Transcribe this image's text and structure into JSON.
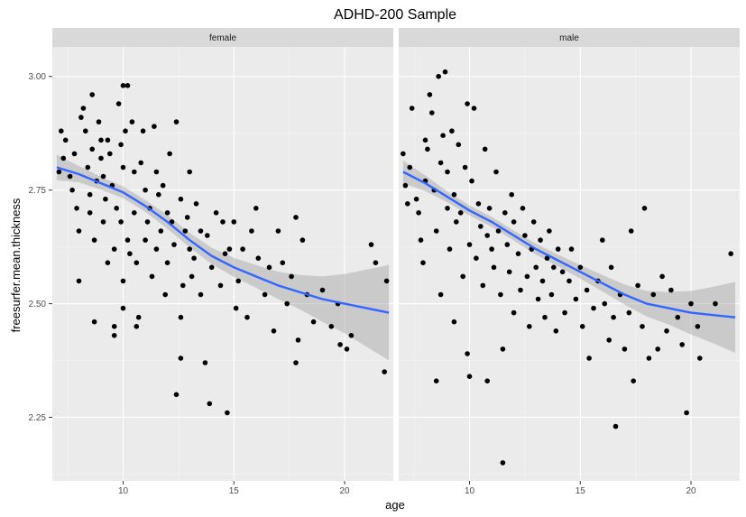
{
  "chart_data": {
    "type": "scatter",
    "title": "ADHD-200 Sample",
    "xlabel": "age",
    "ylabel": "freesurfer.mean.thickness",
    "xlim": [
      6.8,
      22.2
    ],
    "ylim": [
      2.11,
      3.065
    ],
    "x_ticks": [
      10,
      15,
      20
    ],
    "y_ticks": [
      2.25,
      2.5,
      2.75,
      3.0
    ],
    "x_tick_labels": [
      "10",
      "15",
      "20"
    ],
    "y_tick_labels": [
      "2.25",
      "2.50",
      "2.75",
      "3.00"
    ],
    "grid": true,
    "smoother": {
      "color": "#3366ff",
      "ribbon_color": "#999999"
    },
    "panels": [
      {
        "label": "female",
        "points": [
          [
            7.1,
            2.79
          ],
          [
            7.2,
            2.88
          ],
          [
            7.3,
            2.82
          ],
          [
            7.4,
            2.86
          ],
          [
            7.6,
            2.78
          ],
          [
            7.7,
            2.75
          ],
          [
            7.8,
            2.83
          ],
          [
            7.9,
            2.71
          ],
          [
            8.0,
            2.66
          ],
          [
            8.0,
            2.55
          ],
          [
            8.1,
            2.91
          ],
          [
            8.2,
            2.93
          ],
          [
            8.3,
            2.88
          ],
          [
            8.4,
            2.8
          ],
          [
            8.5,
            2.74
          ],
          [
            8.5,
            2.7
          ],
          [
            8.6,
            2.96
          ],
          [
            8.6,
            2.84
          ],
          [
            8.7,
            2.64
          ],
          [
            8.7,
            2.46
          ],
          [
            8.8,
            2.77
          ],
          [
            8.9,
            2.9
          ],
          [
            9.0,
            2.86
          ],
          [
            9.0,
            2.82
          ],
          [
            9.1,
            2.78
          ],
          [
            9.1,
            2.68
          ],
          [
            9.2,
            2.73
          ],
          [
            9.3,
            2.86
          ],
          [
            9.3,
            2.59
          ],
          [
            9.4,
            2.83
          ],
          [
            9.5,
            2.76
          ],
          [
            9.6,
            2.62
          ],
          [
            9.6,
            2.45
          ],
          [
            9.6,
            2.43
          ],
          [
            9.7,
            2.71
          ],
          [
            9.8,
            2.94
          ],
          [
            9.9,
            2.85
          ],
          [
            9.9,
            2.68
          ],
          [
            10.0,
            2.98
          ],
          [
            10.0,
            2.8
          ],
          [
            10.0,
            2.55
          ],
          [
            10.0,
            2.49
          ],
          [
            10.1,
            2.88
          ],
          [
            10.2,
            2.98
          ],
          [
            10.2,
            2.64
          ],
          [
            10.3,
            2.61
          ],
          [
            10.4,
            2.9
          ],
          [
            10.5,
            2.79
          ],
          [
            10.5,
            2.7
          ],
          [
            10.6,
            2.59
          ],
          [
            10.6,
            2.45
          ],
          [
            10.7,
            2.47
          ],
          [
            10.8,
            2.81
          ],
          [
            10.9,
            2.88
          ],
          [
            11.0,
            2.75
          ],
          [
            11.0,
            2.64
          ],
          [
            11.1,
            2.68
          ],
          [
            11.2,
            2.71
          ],
          [
            11.3,
            2.56
          ],
          [
            11.4,
            2.89
          ],
          [
            11.5,
            2.79
          ],
          [
            11.5,
            2.62
          ],
          [
            11.6,
            2.74
          ],
          [
            11.7,
            2.66
          ],
          [
            11.8,
            2.76
          ],
          [
            11.9,
            2.52
          ],
          [
            12.0,
            2.59
          ],
          [
            12.0,
            2.7
          ],
          [
            12.1,
            2.83
          ],
          [
            12.2,
            2.68
          ],
          [
            12.3,
            2.63
          ],
          [
            12.4,
            2.9
          ],
          [
            12.4,
            2.3
          ],
          [
            12.6,
            2.73
          ],
          [
            12.6,
            2.47
          ],
          [
            12.6,
            2.38
          ],
          [
            12.7,
            2.54
          ],
          [
            12.8,
            2.66
          ],
          [
            12.9,
            2.69
          ],
          [
            13.0,
            2.79
          ],
          [
            13.0,
            2.62
          ],
          [
            13.1,
            2.56
          ],
          [
            13.2,
            2.6
          ],
          [
            13.3,
            2.72
          ],
          [
            13.5,
            2.66
          ],
          [
            13.5,
            2.52
          ],
          [
            13.7,
            2.37
          ],
          [
            13.8,
            2.65
          ],
          [
            13.9,
            2.28
          ],
          [
            14.0,
            2.58
          ],
          [
            14.2,
            2.7
          ],
          [
            14.4,
            2.54
          ],
          [
            14.5,
            2.68
          ],
          [
            14.6,
            2.61
          ],
          [
            14.7,
            2.26
          ],
          [
            14.8,
            2.62
          ],
          [
            15.0,
            2.68
          ],
          [
            15.1,
            2.49
          ],
          [
            15.2,
            2.55
          ],
          [
            15.4,
            2.62
          ],
          [
            15.6,
            2.47
          ],
          [
            15.8,
            2.66
          ],
          [
            16.0,
            2.71
          ],
          [
            16.1,
            2.6
          ],
          [
            16.4,
            2.52
          ],
          [
            16.6,
            2.58
          ],
          [
            16.8,
            2.44
          ],
          [
            17.0,
            2.66
          ],
          [
            17.2,
            2.59
          ],
          [
            17.4,
            2.5
          ],
          [
            17.6,
            2.56
          ],
          [
            17.8,
            2.69
          ],
          [
            17.8,
            2.37
          ],
          [
            17.9,
            2.42
          ],
          [
            18.1,
            2.64
          ],
          [
            18.3,
            2.52
          ],
          [
            18.6,
            2.46
          ],
          [
            19.0,
            2.53
          ],
          [
            19.4,
            2.45
          ],
          [
            19.7,
            2.5
          ],
          [
            19.8,
            2.41
          ],
          [
            20.1,
            2.4
          ],
          [
            20.3,
            2.43
          ],
          [
            21.2,
            2.63
          ],
          [
            21.4,
            2.59
          ],
          [
            21.8,
            2.35
          ],
          [
            21.9,
            2.55
          ]
        ],
        "smooth_x": [
          7.0,
          8.0,
          9.0,
          10.0,
          11.0,
          12.0,
          13.0,
          14.0,
          15.0,
          16.0,
          17.0,
          18.0,
          19.0,
          20.0,
          21.0,
          22.0
        ],
        "smooth_y": [
          2.8,
          2.785,
          2.765,
          2.745,
          2.715,
          2.68,
          2.64,
          2.605,
          2.58,
          2.56,
          2.54,
          2.525,
          2.51,
          2.5,
          2.49,
          2.48
        ],
        "ribbon_halfwidth": [
          0.028,
          0.018,
          0.014,
          0.013,
          0.013,
          0.015,
          0.016,
          0.018,
          0.021,
          0.025,
          0.03,
          0.038,
          0.05,
          0.065,
          0.085,
          0.105
        ]
      },
      {
        "label": "male",
        "points": [
          [
            7.0,
            2.83
          ],
          [
            7.1,
            2.76
          ],
          [
            7.2,
            2.72
          ],
          [
            7.3,
            2.8
          ],
          [
            7.4,
            2.93
          ],
          [
            7.6,
            2.73
          ],
          [
            7.7,
            2.7
          ],
          [
            7.8,
            2.64
          ],
          [
            7.9,
            2.59
          ],
          [
            8.0,
            2.86
          ],
          [
            8.0,
            2.77
          ],
          [
            8.1,
            2.84
          ],
          [
            8.2,
            2.96
          ],
          [
            8.3,
            2.92
          ],
          [
            8.4,
            2.75
          ],
          [
            8.5,
            2.66
          ],
          [
            8.5,
            2.33
          ],
          [
            8.6,
            3.0
          ],
          [
            8.7,
            2.81
          ],
          [
            8.7,
            2.52
          ],
          [
            8.8,
            2.87
          ],
          [
            8.9,
            3.01
          ],
          [
            9.0,
            2.79
          ],
          [
            9.0,
            2.71
          ],
          [
            9.1,
            2.62
          ],
          [
            9.2,
            2.88
          ],
          [
            9.3,
            2.74
          ],
          [
            9.3,
            2.46
          ],
          [
            9.4,
            2.68
          ],
          [
            9.5,
            2.85
          ],
          [
            9.6,
            2.7
          ],
          [
            9.7,
            2.56
          ],
          [
            9.8,
            2.8
          ],
          [
            9.9,
            2.94
          ],
          [
            9.9,
            2.39
          ],
          [
            10.0,
            2.34
          ],
          [
            10.0,
            2.63
          ],
          [
            10.1,
            2.77
          ],
          [
            10.2,
            2.93
          ],
          [
            10.3,
            2.6
          ],
          [
            10.4,
            2.72
          ],
          [
            10.5,
            2.67
          ],
          [
            10.6,
            2.54
          ],
          [
            10.7,
            2.84
          ],
          [
            10.8,
            2.65
          ],
          [
            10.8,
            2.33
          ],
          [
            10.9,
            2.71
          ],
          [
            11.0,
            2.62
          ],
          [
            11.1,
            2.58
          ],
          [
            11.2,
            2.79
          ],
          [
            11.3,
            2.66
          ],
          [
            11.4,
            2.52
          ],
          [
            11.5,
            2.4
          ],
          [
            11.5,
            2.15
          ],
          [
            11.6,
            2.7
          ],
          [
            11.7,
            2.63
          ],
          [
            11.8,
            2.57
          ],
          [
            11.9,
            2.74
          ],
          [
            12.0,
            2.68
          ],
          [
            12.0,
            2.48
          ],
          [
            12.2,
            2.61
          ],
          [
            12.3,
            2.53
          ],
          [
            12.4,
            2.71
          ],
          [
            12.5,
            2.65
          ],
          [
            12.6,
            2.56
          ],
          [
            12.7,
            2.45
          ],
          [
            12.8,
            2.62
          ],
          [
            12.9,
            2.68
          ],
          [
            13.0,
            2.58
          ],
          [
            13.1,
            2.51
          ],
          [
            13.2,
            2.64
          ],
          [
            13.3,
            2.55
          ],
          [
            13.4,
            2.47
          ],
          [
            13.5,
            2.6
          ],
          [
            13.6,
            2.66
          ],
          [
            13.7,
            2.52
          ],
          [
            13.8,
            2.58
          ],
          [
            13.9,
            2.44
          ],
          [
            14.0,
            2.62
          ],
          [
            14.2,
            2.57
          ],
          [
            14.3,
            2.48
          ],
          [
            14.5,
            2.55
          ],
          [
            14.6,
            2.62
          ],
          [
            14.8,
            2.51
          ],
          [
            15.0,
            2.58
          ],
          [
            15.1,
            2.45
          ],
          [
            15.3,
            2.53
          ],
          [
            15.4,
            2.38
          ],
          [
            15.6,
            2.49
          ],
          [
            15.8,
            2.55
          ],
          [
            16.0,
            2.64
          ],
          [
            16.1,
            2.5
          ],
          [
            16.3,
            2.42
          ],
          [
            16.4,
            2.58
          ],
          [
            16.5,
            2.47
          ],
          [
            16.6,
            2.23
          ],
          [
            16.8,
            2.52
          ],
          [
            17.0,
            2.4
          ],
          [
            17.2,
            2.48
          ],
          [
            17.3,
            2.66
          ],
          [
            17.4,
            2.33
          ],
          [
            17.6,
            2.54
          ],
          [
            17.8,
            2.45
          ],
          [
            17.9,
            2.71
          ],
          [
            18.1,
            2.38
          ],
          [
            18.3,
            2.52
          ],
          [
            18.5,
            2.4
          ],
          [
            18.7,
            2.56
          ],
          [
            18.9,
            2.44
          ],
          [
            19.1,
            2.53
          ],
          [
            19.4,
            2.47
          ],
          [
            19.6,
            2.41
          ],
          [
            19.8,
            2.26
          ],
          [
            20.0,
            2.5
          ],
          [
            20.3,
            2.45
          ],
          [
            20.4,
            2.38
          ],
          [
            21.1,
            2.5
          ],
          [
            21.8,
            2.61
          ]
        ],
        "smooth_x": [
          7.0,
          8.0,
          9.0,
          10.0,
          11.0,
          12.0,
          13.0,
          14.0,
          15.0,
          16.0,
          17.0,
          18.0,
          19.0,
          20.0,
          21.0,
          22.0
        ],
        "smooth_y": [
          2.79,
          2.765,
          2.735,
          2.705,
          2.68,
          2.65,
          2.62,
          2.595,
          2.57,
          2.545,
          2.52,
          2.5,
          2.49,
          2.48,
          2.475,
          2.47
        ],
        "ribbon_halfwidth": [
          0.025,
          0.017,
          0.012,
          0.011,
          0.011,
          0.011,
          0.012,
          0.013,
          0.015,
          0.018,
          0.022,
          0.028,
          0.036,
          0.048,
          0.062,
          0.078
        ]
      }
    ]
  }
}
